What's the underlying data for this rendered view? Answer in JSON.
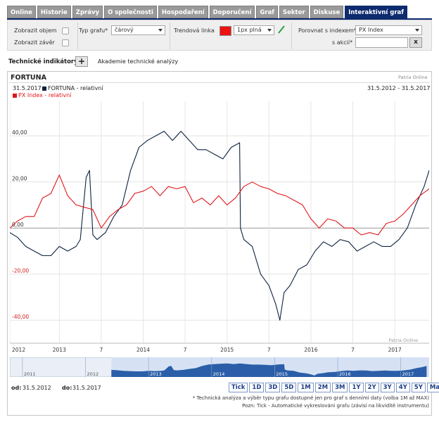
{
  "tabs": [
    {
      "label": "Online",
      "active": false
    },
    {
      "label": "Historie",
      "active": false
    },
    {
      "label": "Zprávy",
      "active": false
    },
    {
      "label": "O společnosti",
      "active": false
    },
    {
      "label": "Hospodaření",
      "active": false
    },
    {
      "label": "Doporučení",
      "active": false
    },
    {
      "label": "Graf",
      "active": false
    },
    {
      "label": "Sektor",
      "active": false
    },
    {
      "label": "Diskuse",
      "active": false
    },
    {
      "label": "Interaktivní graf",
      "active": true
    }
  ],
  "controls": {
    "show_volume_label": "Zobrazit objem",
    "show_close_label": "Zobrazit závěr",
    "chart_type_label": "Typ grafu*",
    "chart_type_value": "čárový",
    "trend_line_label": "Trendová linka",
    "trend_color": "#ee1111",
    "trend_width_value": "1px plná",
    "compare_index_label": "Porovnat s indexem*",
    "compare_index_value": "PX Index",
    "compare_stock_label": "s akcií*",
    "compare_stock_value": "",
    "clear_label": "x"
  },
  "indicators": {
    "label": "Technické indikátory*:",
    "add_label": "+",
    "academy_link": "Akademie technické analýzy"
  },
  "chart": {
    "title": "FORTUNA",
    "provider": "Patria Online",
    "legend_date": "31.5.2017",
    "series1_label": "FORTUNA - relativní",
    "series2_label": "PX Index - relativní",
    "date_range": "31.5.2012 - 31.5.2017",
    "watermark": "Patria Online"
  },
  "chart_data": {
    "type": "line",
    "x_range": [
      "2012-05-31",
      "2017-05-31"
    ],
    "ylim": [
      -50,
      55
    ],
    "yticks": [
      "40,00",
      "20,00",
      "0,00",
      "-20,00",
      "-40,00"
    ],
    "xticks": [
      "2012",
      "2013",
      "7",
      "2014",
      "7",
      "2015",
      "7",
      "2016",
      "7",
      "2017"
    ],
    "grid": true,
    "series": [
      {
        "name": "FORTUNA - relativní",
        "color": "#0d2240",
        "x": [
          2012.41,
          2012.5,
          2012.6,
          2012.7,
          2012.8,
          2012.9,
          2013.0,
          2013.1,
          2013.2,
          2013.25,
          2013.32,
          2013.36,
          2013.4,
          2013.45,
          2013.55,
          2013.65,
          2013.75,
          2013.85,
          2013.95,
          2014.05,
          2014.15,
          2014.25,
          2014.35,
          2014.45,
          2014.55,
          2014.65,
          2014.75,
          2014.85,
          2014.95,
          2015.05,
          2015.15,
          2015.16,
          2015.2,
          2015.3,
          2015.4,
          2015.5,
          2015.58,
          2015.63,
          2015.68,
          2015.75,
          2015.85,
          2015.95,
          2016.05,
          2016.15,
          2016.25,
          2016.35,
          2016.45,
          2016.55,
          2016.65,
          2016.75,
          2016.85,
          2016.95,
          2017.05,
          2017.15,
          2017.25,
          2017.35,
          2017.41
        ],
        "values": [
          -2,
          -4,
          -8,
          -10,
          -12,
          -12,
          -8,
          -10,
          -8,
          -5,
          22,
          25,
          -3,
          -5,
          -2,
          5,
          10,
          25,
          35,
          38,
          40,
          42,
          38,
          42,
          38,
          34,
          34,
          32,
          30,
          35,
          37,
          0,
          -5,
          -8,
          -20,
          -25,
          -33,
          -40,
          -28,
          -25,
          -18,
          -16,
          -10,
          -6,
          -8,
          -5,
          -6,
          -10,
          -8,
          -6,
          -8,
          -8,
          -5,
          0,
          10,
          18,
          25
        ]
      },
      {
        "name": "PX Index - relativní",
        "color": "#e0171b",
        "x": [
          2012.41,
          2012.5,
          2012.6,
          2012.7,
          2012.8,
          2012.9,
          2013.0,
          2013.1,
          2013.2,
          2013.3,
          2013.4,
          2013.5,
          2013.6,
          2013.7,
          2013.8,
          2013.9,
          2014.0,
          2014.1,
          2014.2,
          2014.3,
          2014.4,
          2014.5,
          2014.6,
          2014.7,
          2014.8,
          2014.9,
          2015.0,
          2015.1,
          2015.2,
          2015.3,
          2015.4,
          2015.5,
          2015.6,
          2015.7,
          2015.8,
          2015.9,
          2016.0,
          2016.1,
          2016.2,
          2016.3,
          2016.4,
          2016.5,
          2016.6,
          2016.7,
          2016.8,
          2016.9,
          2017.0,
          2017.1,
          2017.2,
          2017.3,
          2017.41
        ],
        "values": [
          0,
          3,
          5,
          5,
          13,
          15,
          23,
          14,
          10,
          9,
          8,
          0,
          5,
          8,
          10,
          15,
          16,
          18,
          14,
          18,
          17,
          18,
          11,
          13,
          10,
          14,
          10,
          13,
          18,
          20,
          18,
          17,
          15,
          14,
          12,
          10,
          4,
          0,
          4,
          3,
          0,
          0,
          -3,
          -2,
          -3,
          2,
          3,
          6,
          10,
          14,
          17
        ]
      }
    ],
    "navigator_xticks": [
      "2011",
      "2012",
      "2013",
      "2014",
      "2015",
      "2016",
      "2017"
    ]
  },
  "bottom": {
    "from_label": "od:",
    "from_value": "31.5.2012",
    "to_label": "do:",
    "to_value": "31.5.2017",
    "range_buttons": [
      "Tick",
      "1D",
      "3D",
      "5D",
      "1M",
      "2M",
      "3M",
      "1Y",
      "2Y",
      "3Y",
      "4Y",
      "5Y",
      "Max"
    ],
    "note1": "* Technická analýza a výběr typu grafu dostupné jen pro graf s denními daty (volba 1M až MAX)",
    "note2": "Pozn: Tick - Automatické vykreslování grafu (závisí na likviditě instrumentu)"
  }
}
